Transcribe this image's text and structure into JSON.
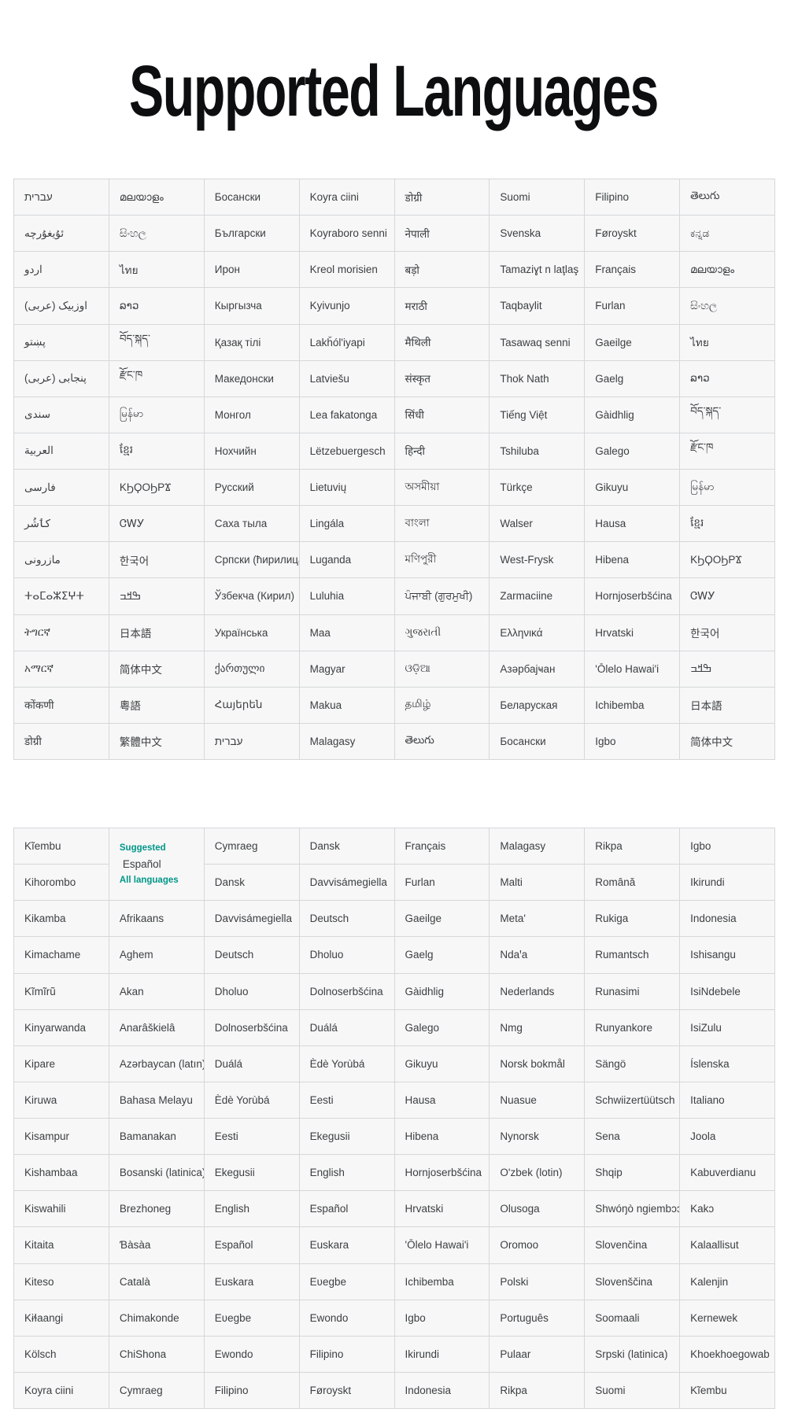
{
  "title": "Supported Languages",
  "colors": {
    "accent_teal": "#009688",
    "cell_background": "#f7f7f7",
    "grid_border": "#d5d7d9",
    "text": "#3c4043",
    "title_text": "#0d0e10"
  },
  "table1": {
    "columns": [
      [
        "עברית",
        "ئۇيغۇرچە",
        "اردو",
        "اوزبیک (عربی)",
        "پښتو",
        "پنجابی (عربی)",
        "سندی",
        "العربية",
        "فارسی",
        "كٲشُر",
        "مازرونی",
        "ⵜⴰⵎⴰⵣⵉⵖⵜ",
        "ትግርኛ",
        "አማርኛ",
        "कोंकणी",
        "डोग्री"
      ],
      [
        "മലയാളം",
        "සිංහල",
        "ไทย",
        "ລາວ",
        "བོད་སྐད་",
        "རྫོང་ཁ",
        "မြန်မာ",
        "ខ្មែរ",
        "ΚϦϘΟϦΡϪ",
        "ᏣᎳᎩ",
        "한국어",
        "ߒߞߏ",
        "日本語",
        "简体中文",
        "粵語",
        "繁體中文"
      ],
      [
        "Босански",
        "Български",
        "Ирон",
        "Кыргызча",
        "Қазақ тілі",
        "Македонски",
        "Монгол",
        "Нохчийн",
        "Русский",
        "Саха тыла",
        "Српски (ћирилица)",
        "Ўзбекча (Кирил)",
        "Українська",
        "ქართული",
        "Հայերեն",
        "עברית"
      ],
      [
        "Koyra ciini",
        "Koyraboro senni",
        "Kreol morisien",
        "Kyivunjo",
        "Lakȟól'iyapi",
        "Latviešu",
        "Lea fakatonga",
        "Lëtzebuergesch",
        "Lietuvių",
        "Lingála",
        "Luganda",
        "Luluhia",
        "Maa",
        "Magyar",
        "Makua",
        "Malagasy"
      ],
      [
        "डोग्री",
        "नेपाली",
        "बड़ो",
        "मराठी",
        "मैथिली",
        "संस्कृत",
        "सिंधी",
        "हिन्दी",
        "অসমীয়া",
        "বাংলা",
        "মণিপুরী",
        "ਪੰਜਾਬੀ (ਗੁਰਮੁਖੀ)",
        "ગુજરાતી",
        "ଓଡ଼ିଆ",
        "தமிழ்",
        "తెలుగు"
      ],
      [
        "Suomi",
        "Svenska",
        "Tamaziɣt n laţlaş",
        "Taqbaylit",
        "Tasawaq senni",
        "Thok Nath",
        "Tiếng Việt",
        "Tshiluba",
        "Türkçe",
        "Walser",
        "West-Frysk",
        "Zarmaciine",
        "Ελληνικά",
        "Азәрбајҹан",
        "Беларуская",
        "Босански"
      ],
      [
        "Filipino",
        "Føroyskt",
        "Français",
        "Furlan",
        "Gaeilge",
        "Gaelg",
        "Gàidhlig",
        "Galego",
        "Gikuyu",
        "Hausa",
        "Hibena",
        "Hornjoserbšćina",
        "Hrvatski",
        "'Ōlelo Hawai'i",
        "Ichibemba",
        "Igbo"
      ],
      [
        "తెలుగు",
        "ಕನ್ನಡ",
        "മലയാളം",
        "සිංහල",
        "ไทย",
        "ລາວ",
        "བོད་སྐད་",
        "རྫོང་ཁ",
        "မြန်မာ",
        "ខ្មែរ",
        "ΚϦϘΟϦΡϪ",
        "ᏣᎳᎩ",
        "한국어",
        "ߒߞߏ",
        "日本語",
        "简体中文"
      ]
    ]
  },
  "table2": {
    "suggested": {
      "label": "Suggested",
      "language": "Español",
      "all_label": "All languages"
    },
    "columns": [
      [
        "Kĩembu",
        "Kihorombo",
        "Kikamba",
        "Kimachame",
        "Kĩmĩrũ",
        "Kinyarwanda",
        "Kipare",
        "Kiruwa",
        "Kisampur",
        "Kishambaa",
        "Kiswahili",
        "Kitaita",
        "Kiteso",
        "Kɨɬaangi",
        "Kölsch",
        "Koyra ciini"
      ],
      [
        "Afrikaans",
        "Aghem",
        "Akan",
        "Anarâškielâ",
        "Azərbaycan (latın)",
        "Bahasa Melayu",
        "Bamanakan",
        "Bosanski (latinica)",
        "Brezhoneg",
        "Ɓàsàa",
        "Català",
        "Chimakonde",
        "ChiShona",
        "Cymraeg"
      ],
      [
        "Cymraeg",
        "Dansk",
        "Davvisámegiella",
        "Deutsch",
        "Dholuo",
        "Dolnoserbšćina",
        "Duálá",
        "Èdè Yorùbá",
        "Eesti",
        "Ekegusii",
        "English",
        "Español",
        "Euskara",
        "Eʋegbe",
        "Ewondo",
        "Filipino"
      ],
      [
        "Dansk",
        "Davvisámegiella",
        "Deutsch",
        "Dholuo",
        "Dolnoserbšćina",
        "Duálá",
        "Èdè Yorùbá",
        "Eesti",
        "Ekegusii",
        "English",
        "Español",
        "Euskara",
        "Eʋegbe",
        "Ewondo",
        "Filipino",
        "Føroyskt"
      ],
      [
        "Français",
        "Furlan",
        "Gaeilge",
        "Gaelg",
        "Gàidhlig",
        "Galego",
        "Gikuyu",
        "Hausa",
        "Hibena",
        "Hornjoserbšćina",
        "Hrvatski",
        "'Ōlelo Hawai'i",
        "Ichibemba",
        "Igbo",
        "Ikirundi",
        "Indonesia"
      ],
      [
        "Malagasy",
        "Malti",
        "Meta'",
        "Ndaꞌa",
        "Nederlands",
        "Nmg",
        "Norsk bokmål",
        "Nuasue",
        "Nynorsk",
        "O'zbek (lotin)",
        "Olusoga",
        "Oromoo",
        "Polski",
        "Português",
        "Pulaar",
        "Rikpa"
      ],
      [
        "Rikpa",
        "Română",
        "Rukiga",
        "Rumantsch",
        "Runasimi",
        "Runyankore",
        "Sängö",
        "Schwiizertüütsch",
        "Sena",
        "Shqip",
        "Shwóŋò ngiembɔɔn",
        "Slovenčina",
        "Slovenščina",
        "Soomaali",
        "Srpski (latinica)",
        "Suomi"
      ],
      [
        "Igbo",
        "Ikirundi",
        "Indonesia",
        "Ishisangu",
        "IsiNdebele",
        "IsiZulu",
        "Íslenska",
        "Italiano",
        "Joola",
        "Kabuverdianu",
        "Kakɔ",
        "Kalaallisut",
        "Kalenjin",
        "Kernewek",
        "Khoekhoegowab",
        "Kĩembu"
      ]
    ]
  }
}
